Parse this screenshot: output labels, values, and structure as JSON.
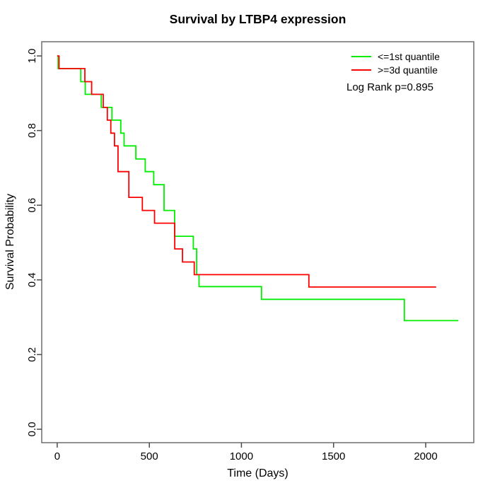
{
  "chart_data": {
    "type": "line",
    "subtype": "kaplan-meier-step",
    "title": "Survival by LTBP4 expression",
    "xlabel": "Time (Days)",
    "ylabel": "Survival Probability",
    "annotation": "Log Rank p=0.895",
    "grid": false,
    "legend_position": "top-right-inside",
    "xlim": [
      -84,
      2261
    ],
    "ylim": [
      -0.036,
      1.038
    ],
    "x_ticks": [
      0,
      500,
      1000,
      1500,
      2000
    ],
    "x_tick_labels": [
      "0",
      "500",
      "1000",
      "1500",
      "2000"
    ],
    "y_ticks": [
      0.0,
      0.2,
      0.4,
      0.6,
      0.8,
      1.0
    ],
    "y_tick_labels": [
      "0.0",
      "0.2",
      "0.4",
      "0.6",
      "0.8",
      "1.0"
    ],
    "series": [
      {
        "name": "<=1st quantile",
        "color": "#00ee00",
        "start": [
          0,
          1.0
        ],
        "steps": [
          [
            5,
            0.966
          ],
          [
            128,
            0.931
          ],
          [
            152,
            0.897
          ],
          [
            239,
            0.862
          ],
          [
            297,
            0.828
          ],
          [
            345,
            0.793
          ],
          [
            363,
            0.759
          ],
          [
            427,
            0.724
          ],
          [
            478,
            0.69
          ],
          [
            524,
            0.655
          ],
          [
            580,
            0.586
          ],
          [
            637,
            0.517
          ],
          [
            739,
            0.483
          ],
          [
            757,
            0.414
          ],
          [
            770,
            0.382
          ],
          [
            1109,
            0.348
          ],
          [
            1884,
            0.291
          ]
        ],
        "end_time": 2177
      },
      {
        "name": ">=3d quantile",
        "color": "#ff0000",
        "start": [
          0,
          1.0
        ],
        "steps": [
          [
            10,
            0.966
          ],
          [
            150,
            0.931
          ],
          [
            187,
            0.897
          ],
          [
            250,
            0.862
          ],
          [
            272,
            0.828
          ],
          [
            291,
            0.793
          ],
          [
            311,
            0.759
          ],
          [
            330,
            0.69
          ],
          [
            389,
            0.621
          ],
          [
            462,
            0.586
          ],
          [
            528,
            0.552
          ],
          [
            638,
            0.483
          ],
          [
            680,
            0.448
          ],
          [
            744,
            0.414
          ],
          [
            1366,
            0.381
          ]
        ],
        "end_time": 2057
      }
    ]
  },
  "colors": {
    "frame": "#6e6e6e",
    "axis": "#4a4a4a",
    "text": "#000000",
    "background": "#ffffff"
  }
}
